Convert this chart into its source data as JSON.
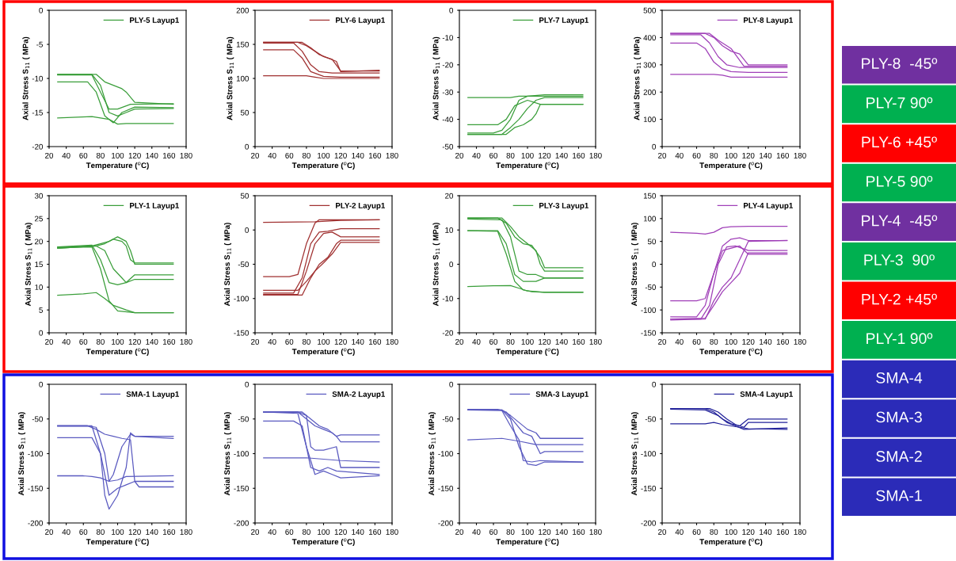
{
  "chart_data": [
    {
      "type": "line",
      "xlabel": "Temperature ($^{o}$C)",
      "ylabel": "Axial Stress S$_{11}$ ( MPa)",
      "xlim": [
        20,
        180
      ],
      "xticks": [
        20,
        40,
        60,
        80,
        100,
        120,
        140,
        160,
        180
      ],
      "ylim": [
        -20,
        0
      ],
      "yticks": [
        -20,
        -15,
        -10,
        -5,
        0
      ],
      "legend": "top right",
      "series": [
        {
          "name": "PLY-5 Layup1",
          "color": "#3a9e3a",
          "x": [
            30,
            70,
            80,
            90,
            100,
            110,
            120,
            165
          ],
          "values": [
            -9.4,
            -9.4,
            -11,
            -15,
            -15.5,
            -15,
            -14.5,
            -14.4
          ]
        },
        {
          "color": "#3a9e3a",
          "x": [
            30,
            75,
            85,
            95,
            105,
            110,
            120,
            165
          ],
          "values": [
            -9.4,
            -9.4,
            -10.5,
            -11,
            -11.5,
            -12,
            -13.5,
            -13.8
          ]
        },
        {
          "color": "#3a9e3a",
          "x": [
            30,
            65,
            75,
            85,
            95,
            105,
            120,
            165
          ],
          "values": [
            -10.5,
            -10.5,
            -12,
            -15.5,
            -16.5,
            -15,
            -14.2,
            -14.3
          ]
        },
        {
          "color": "#3a9e3a",
          "x": [
            30,
            70,
            90,
            100,
            110,
            120,
            165
          ],
          "values": [
            -15.8,
            -15.6,
            -16,
            -16.7,
            -16.6,
            -16.6,
            -16.6
          ]
        },
        {
          "color": "#3a9e3a",
          "x": [
            30,
            70,
            80,
            90,
            100,
            115,
            165
          ],
          "values": [
            -9.5,
            -9.5,
            -12,
            -14.5,
            -14.5,
            -13.8,
            -13.7
          ]
        }
      ]
    },
    {
      "type": "line",
      "xlabel": "Temperature ($^{o}$C)",
      "ylabel": "Axial Stress S$_{11}$ ( MPa)",
      "xlim": [
        20,
        180
      ],
      "xticks": [
        20,
        40,
        60,
        80,
        100,
        120,
        140,
        160,
        180
      ],
      "ylim": [
        0,
        200
      ],
      "yticks": [
        0,
        50,
        100,
        150,
        200
      ],
      "legend": "top right",
      "series": [
        {
          "name": "PLY-6 Layup1",
          "color": "#a03030",
          "x": [
            30,
            70,
            80,
            90,
            100,
            110,
            120,
            165
          ],
          "values": [
            153,
            153,
            148,
            140,
            132,
            128,
            111,
            111
          ]
        },
        {
          "color": "#a03030",
          "x": [
            30,
            65,
            75,
            85,
            95,
            110,
            165
          ],
          "values": [
            152,
            152,
            140,
            120,
            110,
            108,
            108
          ]
        },
        {
          "color": "#a03030",
          "x": [
            30,
            65,
            75,
            85,
            100,
            120,
            165
          ],
          "values": [
            142,
            142,
            130,
            110,
            103,
            102,
            102
          ]
        },
        {
          "color": "#a03030",
          "x": [
            30,
            80,
            90,
            100,
            120,
            165
          ],
          "values": [
            104,
            104,
            102,
            100,
            100,
            100
          ]
        },
        {
          "color": "#a03030",
          "x": [
            30,
            75,
            85,
            95,
            105,
            115,
            120,
            165
          ],
          "values": [
            153,
            153,
            145,
            135,
            130,
            125,
            110,
            112
          ]
        }
      ]
    },
    {
      "type": "line",
      "xlabel": "Temperature ($^{o}$C)",
      "ylabel": "Axial Stress S$_{11}$ ( MPa)",
      "xlim": [
        20,
        180
      ],
      "xticks": [
        20,
        40,
        60,
        80,
        100,
        120,
        140,
        160,
        180
      ],
      "ylim": [
        -50,
        0
      ],
      "yticks": [
        -50,
        -40,
        -30,
        -20,
        -10,
        0
      ],
      "legend": "top right",
      "series": [
        {
          "name": "PLY-7 Layup1",
          "color": "#3a9e3a",
          "x": [
            30,
            60,
            70,
            80,
            90,
            100,
            120,
            165
          ],
          "values": [
            -45,
            -45,
            -44,
            -40,
            -33,
            -31.5,
            -31,
            -31
          ]
        },
        {
          "color": "#3a9e3a",
          "x": [
            30,
            70,
            80,
            90,
            100,
            110,
            120,
            165
          ],
          "values": [
            -45.5,
            -45.5,
            -43,
            -40,
            -36,
            -33,
            -32,
            -32
          ]
        },
        {
          "color": "#3a9e3a",
          "x": [
            30,
            75,
            85,
            95,
            105,
            110,
            115,
            120,
            165
          ],
          "values": [
            -45.5,
            -45.5,
            -43,
            -42,
            -40,
            -38,
            -34.5,
            -34.5,
            -34.5
          ]
        },
        {
          "color": "#3a9e3a",
          "x": [
            30,
            65,
            75,
            85,
            100,
            115,
            165
          ],
          "values": [
            -42,
            -42,
            -40,
            -35,
            -33,
            -34.5,
            -34.5
          ]
        },
        {
          "color": "#3a9e3a",
          "x": [
            30,
            80,
            90,
            165
          ],
          "values": [
            -32,
            -32,
            -31.5,
            -31.5
          ]
        }
      ]
    },
    {
      "type": "line",
      "xlabel": "Temperature ($^{o}$C)",
      "ylabel": "Axial Stress S$_{11}$ ( MPa)",
      "xlim": [
        20,
        180
      ],
      "xticks": [
        20,
        40,
        60,
        80,
        100,
        120,
        140,
        160,
        180
      ],
      "ylim": [
        0,
        500
      ],
      "yticks": [
        0,
        100,
        200,
        300,
        400,
        500
      ],
      "legend": "top right",
      "series": [
        {
          "name": "PLY-8 Layup1",
          "color": "#a040b8",
          "x": [
            30,
            70,
            80,
            90,
            100,
            110,
            120,
            165
          ],
          "values": [
            415,
            415,
            400,
            370,
            350,
            340,
            300,
            300
          ]
        },
        {
          "color": "#a040b8",
          "x": [
            30,
            65,
            75,
            85,
            95,
            110,
            165
          ],
          "values": [
            410,
            410,
            380,
            330,
            300,
            290,
            290
          ]
        },
        {
          "color": "#a040b8",
          "x": [
            30,
            60,
            70,
            80,
            90,
            100,
            120,
            165
          ],
          "values": [
            380,
            380,
            360,
            310,
            285,
            275,
            272,
            272
          ]
        },
        {
          "color": "#a040b8",
          "x": [
            30,
            80,
            90,
            100,
            165
          ],
          "values": [
            265,
            265,
            262,
            255,
            255
          ]
        },
        {
          "color": "#a040b8",
          "x": [
            30,
            75,
            85,
            100,
            115,
            165
          ],
          "values": [
            415,
            415,
            390,
            360,
            295,
            295
          ]
        }
      ]
    },
    {
      "type": "line",
      "xlabel": "Temperature ($^{o}$C)",
      "ylabel": "Axial Stress S$_{11}$ ( MPa)",
      "xlim": [
        20,
        180
      ],
      "xticks": [
        20,
        40,
        60,
        80,
        100,
        120,
        140,
        160,
        180
      ],
      "ylim": [
        0,
        30
      ],
      "yticks": [
        0,
        5,
        10,
        15,
        20,
        25,
        30
      ],
      "legend": "top right",
      "series": [
        {
          "name": "PLY-1 Layup1",
          "color": "#3a9e3a",
          "x": [
            30,
            70,
            80,
            90,
            100,
            110,
            115,
            120,
            165
          ],
          "values": [
            18.7,
            19,
            19.5,
            20,
            21,
            20,
            18,
            15,
            15
          ]
        },
        {
          "color": "#3a9e3a",
          "x": [
            30,
            75,
            85,
            95,
            105,
            110,
            120,
            165
          ],
          "values": [
            18.5,
            19,
            18,
            14,
            12,
            11,
            11.7,
            11.7
          ]
        },
        {
          "color": "#3a9e3a",
          "x": [
            30,
            70,
            80,
            90,
            100,
            110,
            120,
            165
          ],
          "values": [
            18.8,
            19.2,
            16,
            11,
            10.5,
            11,
            12.7,
            12.7
          ]
        },
        {
          "color": "#3a9e3a",
          "x": [
            30,
            60,
            75,
            85,
            95,
            110,
            120,
            165
          ],
          "values": [
            8.2,
            8.5,
            8.8,
            7.5,
            6,
            5,
            4.4,
            4.4
          ]
        },
        {
          "color": "#3a9e3a",
          "x": [
            30,
            70,
            80,
            90,
            100,
            120,
            165
          ],
          "values": [
            18.7,
            18.8,
            14,
            7,
            4.8,
            4.4,
            4.4
          ]
        },
        {
          "color": "#3a9e3a",
          "x": [
            30,
            75,
            85,
            95,
            105,
            110,
            115,
            120,
            165
          ],
          "values": [
            18.5,
            19,
            19.5,
            20.5,
            20,
            19,
            16,
            15.3,
            15.3
          ]
        }
      ]
    },
    {
      "type": "line",
      "xlabel": "Temperature ($^{o}$C)",
      "ylabel": "Axial Stress S$_{11}$ ( MPa)",
      "xlim": [
        20,
        180
      ],
      "xticks": [
        20,
        40,
        60,
        80,
        100,
        120,
        140,
        160,
        180
      ],
      "ylim": [
        -150,
        50
      ],
      "yticks": [
        -150,
        -100,
        -50,
        0,
        50
      ],
      "legend": "top right",
      "series": [
        {
          "name": "PLY-2 Layup1",
          "color": "#a03030",
          "x": [
            30,
            60,
            70,
            80,
            90,
            95,
            120,
            165
          ],
          "values": [
            -68,
            -68,
            -65,
            -20,
            10,
            15,
            15,
            15
          ]
        },
        {
          "color": "#a03030",
          "x": [
            30,
            65,
            75,
            85,
            95,
            105,
            120,
            165
          ],
          "values": [
            -92,
            -92,
            -70,
            -20,
            -3,
            -2,
            2,
            2
          ]
        },
        {
          "color": "#a03030",
          "x": [
            30,
            70,
            80,
            90,
            100,
            110,
            120,
            165
          ],
          "values": [
            -94,
            -94,
            -60,
            -20,
            -5,
            -3,
            -10,
            -10
          ]
        },
        {
          "color": "#a03030",
          "x": [
            30,
            75,
            85,
            95,
            105,
            115,
            120,
            165
          ],
          "values": [
            -95,
            -95,
            -70,
            -50,
            -40,
            -20,
            -15,
            -15
          ]
        },
        {
          "color": "#a03030",
          "x": [
            30,
            90,
            120,
            165
          ],
          "values": [
            11,
            12,
            14,
            15
          ]
        },
        {
          "color": "#a03030",
          "x": [
            30,
            70,
            80,
            90,
            100,
            110,
            120,
            165
          ],
          "values": [
            -88,
            -88,
            -75,
            -60,
            -48,
            -35,
            -18,
            -18
          ]
        }
      ]
    },
    {
      "type": "line",
      "xlabel": "Temperature ($^{o}$C)",
      "ylabel": "Axial Stress S$_{11}$ ( MPa)",
      "xlim": [
        20,
        180
      ],
      "xticks": [
        20,
        40,
        60,
        80,
        100,
        120,
        140,
        160,
        180
      ],
      "ylim": [
        -20,
        20
      ],
      "yticks": [
        -20,
        -10,
        0,
        10,
        20
      ],
      "legend": "top right",
      "series": [
        {
          "name": "PLY-3 Layup1",
          "color": "#3a9e3a",
          "x": [
            30,
            65,
            75,
            85,
            95,
            105,
            115,
            120,
            165
          ],
          "values": [
            13.5,
            13.5,
            12,
            8,
            6,
            5.5,
            2,
            -1,
            -1
          ]
        },
        {
          "color": "#3a9e3a",
          "x": [
            30,
            70,
            80,
            90,
            100,
            110,
            120,
            165
          ],
          "values": [
            13.2,
            13,
            8,
            -2,
            -3,
            -3,
            -4,
            -4
          ]
        },
        {
          "color": "#3a9e3a",
          "x": [
            30,
            65,
            75,
            85,
            95,
            110,
            120,
            165
          ],
          "values": [
            9.8,
            9.8,
            6,
            -3,
            -5,
            -5,
            -4,
            -4
          ]
        },
        {
          "color": "#3a9e3a",
          "x": [
            30,
            60,
            80,
            90,
            100,
            120,
            165
          ],
          "values": [
            -6.5,
            -6.3,
            -6.2,
            -7,
            -7.8,
            -8.2,
            -8.2
          ]
        },
        {
          "color": "#3a9e3a",
          "x": [
            30,
            65,
            75,
            85,
            95,
            105,
            120,
            165
          ],
          "values": [
            9.8,
            9.6,
            3,
            -5,
            -7.5,
            -8,
            -8.2,
            -8.2
          ]
        },
        {
          "color": "#3a9e3a",
          "x": [
            30,
            70,
            80,
            90,
            100,
            110,
            115,
            120,
            165
          ],
          "values": [
            13.5,
            13.5,
            11,
            8,
            6,
            4,
            0,
            -2,
            -2
          ]
        }
      ]
    },
    {
      "type": "line",
      "xlabel": "Temperature ($^{o}$C)",
      "ylabel": "Axial Stress S$_{11}$ ( MPa)",
      "xlim": [
        20,
        180
      ],
      "xticks": [
        20,
        40,
        60,
        80,
        100,
        120,
        140,
        160,
        180
      ],
      "ylim": [
        -150,
        150
      ],
      "yticks": [
        -150,
        -100,
        -50,
        0,
        50,
        100,
        150
      ],
      "legend": "top right",
      "series": [
        {
          "name": "PLY-4 Layup1",
          "color": "#a040b8",
          "x": [
            30,
            60,
            70,
            80,
            90,
            100,
            120,
            165
          ],
          "values": [
            70,
            68,
            66,
            70,
            80,
            82,
            83,
            83
          ]
        },
        {
          "color": "#a040b8",
          "x": [
            30,
            60,
            70,
            80,
            90,
            100,
            110,
            120,
            165
          ],
          "values": [
            -115,
            -115,
            -90,
            -20,
            40,
            55,
            58,
            52,
            52
          ]
        },
        {
          "color": "#a040b8",
          "x": [
            30,
            65,
            75,
            85,
            95,
            105,
            120,
            165
          ],
          "values": [
            -120,
            -120,
            -90,
            0,
            38,
            40,
            30,
            30
          ]
        },
        {
          "color": "#a040b8",
          "x": [
            30,
            70,
            80,
            90,
            100,
            110,
            120,
            165
          ],
          "values": [
            -120,
            -118,
            -90,
            -60,
            -40,
            -20,
            25,
            25
          ]
        },
        {
          "color": "#a040b8",
          "x": [
            30,
            60,
            70,
            80,
            90,
            110,
            120,
            165
          ],
          "values": [
            -80,
            -80,
            -75,
            -20,
            30,
            40,
            22,
            22
          ]
        },
        {
          "color": "#a040b8",
          "x": [
            30,
            70,
            80,
            90,
            100,
            110,
            120,
            165
          ],
          "values": [
            -122,
            -120,
            -80,
            -50,
            -30,
            10,
            50,
            52
          ]
        }
      ]
    },
    {
      "type": "line",
      "xlabel": "Temperature ($^{o}$C)",
      "ylabel": "Axial Stress S$_{11}$ ( MPa)",
      "xlim": [
        20,
        180
      ],
      "xticks": [
        20,
        40,
        60,
        80,
        100,
        120,
        140,
        160,
        180
      ],
      "ylim": [
        -200,
        0
      ],
      "yticks": [
        -200,
        -150,
        -100,
        -50,
        0
      ],
      "legend": "top right",
      "series": [
        {
          "name": "SMA-1 Layup1",
          "color": "#5a5ac0",
          "x": [
            30,
            65,
            75,
            85,
            90,
            95,
            105,
            115,
            120,
            165
          ],
          "values": [
            -60,
            -60,
            -62,
            -100,
            -140,
            -130,
            -90,
            -72,
            -75,
            -75
          ]
        },
        {
          "color": "#5a5ac0",
          "x": [
            30,
            70,
            80,
            85,
            90,
            100,
            110,
            115,
            120,
            165
          ],
          "values": [
            -77,
            -77,
            -100,
            -160,
            -180,
            -160,
            -120,
            -70,
            -75,
            -78
          ]
        },
        {
          "color": "#5a5ac0",
          "x": [
            30,
            60,
            70,
            80,
            90,
            100,
            110,
            165
          ],
          "values": [
            -132,
            -132,
            -133,
            -135,
            -140,
            -138,
            -133,
            -132
          ]
        },
        {
          "color": "#5a5ac0",
          "x": [
            30,
            65,
            75,
            85,
            95,
            105,
            115,
            120,
            125,
            165
          ],
          "values": [
            -60,
            -60,
            -65,
            -72,
            -75,
            -78,
            -80,
            -140,
            -148,
            -148
          ]
        },
        {
          "color": "#5a5ac0",
          "x": [
            30,
            70,
            80,
            90,
            100,
            110,
            120,
            165
          ],
          "values": [
            -60,
            -60,
            -100,
            -160,
            -150,
            -145,
            -140,
            -140
          ]
        }
      ]
    },
    {
      "type": "line",
      "xlabel": "Temperature ($^{o}$C)",
      "ylabel": "Axial Stress S$_{11}$ ( MPa)",
      "xlim": [
        20,
        180
      ],
      "xticks": [
        20,
        40,
        60,
        80,
        100,
        120,
        140,
        160,
        180
      ],
      "ylim": [
        -200,
        0
      ],
      "yticks": [
        -200,
        -150,
        -100,
        -50,
        0
      ],
      "legend": "top right",
      "series": [
        {
          "name": "SMA-2 Layup1",
          "color": "#5a5ac0",
          "x": [
            30,
            70,
            80,
            90,
            100,
            110,
            115,
            120,
            165
          ],
          "values": [
            -40,
            -40,
            -50,
            -60,
            -65,
            -70,
            -75,
            -73,
            -73
          ]
        },
        {
          "color": "#5a5ac0",
          "x": [
            30,
            65,
            75,
            85,
            95,
            105,
            115,
            165
          ],
          "values": [
            -53,
            -53,
            -60,
            -120,
            -125,
            -120,
            -125,
            -130
          ]
        },
        {
          "color": "#5a5ac0",
          "x": [
            30,
            70,
            80,
            85,
            90,
            100,
            115,
            120,
            165
          ],
          "values": [
            -40,
            -40,
            -45,
            -90,
            -95,
            -95,
            -90,
            -120,
            -120
          ]
        },
        {
          "color": "#5a5ac0",
          "x": [
            30,
            80,
            100,
            120,
            165
          ],
          "values": [
            -106,
            -106,
            -108,
            -110,
            -112
          ]
        },
        {
          "color": "#5a5ac0",
          "x": [
            30,
            70,
            80,
            90,
            100,
            110,
            120,
            165
          ],
          "values": [
            -40,
            -42,
            -90,
            -130,
            -125,
            -130,
            -135,
            -132
          ]
        },
        {
          "color": "#5a5ac0",
          "x": [
            30,
            75,
            85,
            95,
            105,
            115,
            120,
            165
          ],
          "values": [
            -40,
            -40,
            -50,
            -60,
            -65,
            -75,
            -83,
            -83
          ]
        }
      ]
    },
    {
      "type": "line",
      "xlabel": "Temperature ($^{o}$C)",
      "ylabel": "Axial Stress S$_{11}$ ( MPa)",
      "xlim": [
        20,
        180
      ],
      "xticks": [
        20,
        40,
        60,
        80,
        100,
        120,
        140,
        160,
        180
      ],
      "ylim": [
        -200,
        0
      ],
      "yticks": [
        -200,
        -150,
        -100,
        -50,
        0
      ],
      "legend": "top right",
      "series": [
        {
          "name": "SMA-3 Layup1",
          "color": "#5a5ac0",
          "x": [
            30,
            70,
            80,
            90,
            100,
            110,
            115,
            165
          ],
          "values": [
            -37,
            -37,
            -45,
            -55,
            -65,
            -70,
            -78,
            -78
          ]
        },
        {
          "color": "#5a5ac0",
          "x": [
            30,
            70,
            80,
            90,
            95,
            105,
            115,
            165
          ],
          "values": [
            -37,
            -38,
            -60,
            -80,
            -110,
            -112,
            -110,
            -112
          ]
        },
        {
          "color": "#5a5ac0",
          "x": [
            30,
            65,
            75,
            85,
            95,
            105,
            115,
            120,
            165
          ],
          "values": [
            -36,
            -36,
            -40,
            -55,
            -70,
            -75,
            -100,
            -97,
            -97
          ]
        },
        {
          "color": "#5a5ac0",
          "x": [
            30,
            70,
            90,
            110,
            165
          ],
          "values": [
            -80,
            -78,
            -82,
            -87,
            -87
          ]
        },
        {
          "color": "#5a5ac0",
          "x": [
            30,
            70,
            80,
            90,
            100,
            110,
            120,
            165
          ],
          "values": [
            -37,
            -37,
            -50,
            -90,
            -115,
            -117,
            -112,
            -112
          ]
        }
      ]
    },
    {
      "type": "line",
      "xlabel": "Temperature ($^{o}$C)",
      "ylabel": "Axial Stress S$_{11}$ ( MPa)",
      "xlim": [
        20,
        180
      ],
      "xticks": [
        20,
        40,
        60,
        80,
        100,
        120,
        140,
        160,
        180
      ],
      "ylim": [
        -200,
        0
      ],
      "yticks": [
        -200,
        -150,
        -100,
        -50,
        0
      ],
      "legend": "top right",
      "series": [
        {
          "name": "SMA-4 Layup1",
          "color": "#22229a",
          "x": [
            30,
            70,
            80,
            90,
            100,
            110,
            120,
            165
          ],
          "values": [
            -35,
            -35,
            -40,
            -50,
            -57,
            -60,
            -50,
            -50
          ]
        },
        {
          "color": "#22229a",
          "x": [
            30,
            75,
            85,
            95,
            105,
            115,
            120,
            165
          ],
          "values": [
            -35,
            -35,
            -40,
            -50,
            -58,
            -62,
            -55,
            -55
          ]
        },
        {
          "color": "#22229a",
          "x": [
            30,
            70,
            80,
            90,
            110,
            120,
            165
          ],
          "values": [
            -57,
            -57,
            -55,
            -58,
            -62,
            -64,
            -65
          ]
        },
        {
          "color": "#22229a",
          "x": [
            30,
            70,
            85,
            95,
            105,
            115,
            165
          ],
          "values": [
            -36,
            -37,
            -45,
            -55,
            -60,
            -65,
            -63
          ]
        }
      ]
    },
    {
      "type": "other",
      "annotations": [
        "PLY-8  -45º",
        "PLY-7 90º",
        "PLY-6 +45º",
        "PLY-5 90º",
        "PLY-4  -45º",
        "PLY-3  90º",
        "PLY-2 +45º",
        "PLY-1 90º",
        "SMA-4",
        "SMA-3",
        "SMA-2",
        "SMA-1"
      ],
      "colors": [
        "#7030a0",
        "#00b050",
        "#ff0000",
        "#00b050",
        "#7030a0",
        "#00b050",
        "#ff0000",
        "#00b050",
        "#2b2bb8",
        "#2b2bb8",
        "#2b2bb8",
        "#2b2bb8"
      ]
    }
  ]
}
